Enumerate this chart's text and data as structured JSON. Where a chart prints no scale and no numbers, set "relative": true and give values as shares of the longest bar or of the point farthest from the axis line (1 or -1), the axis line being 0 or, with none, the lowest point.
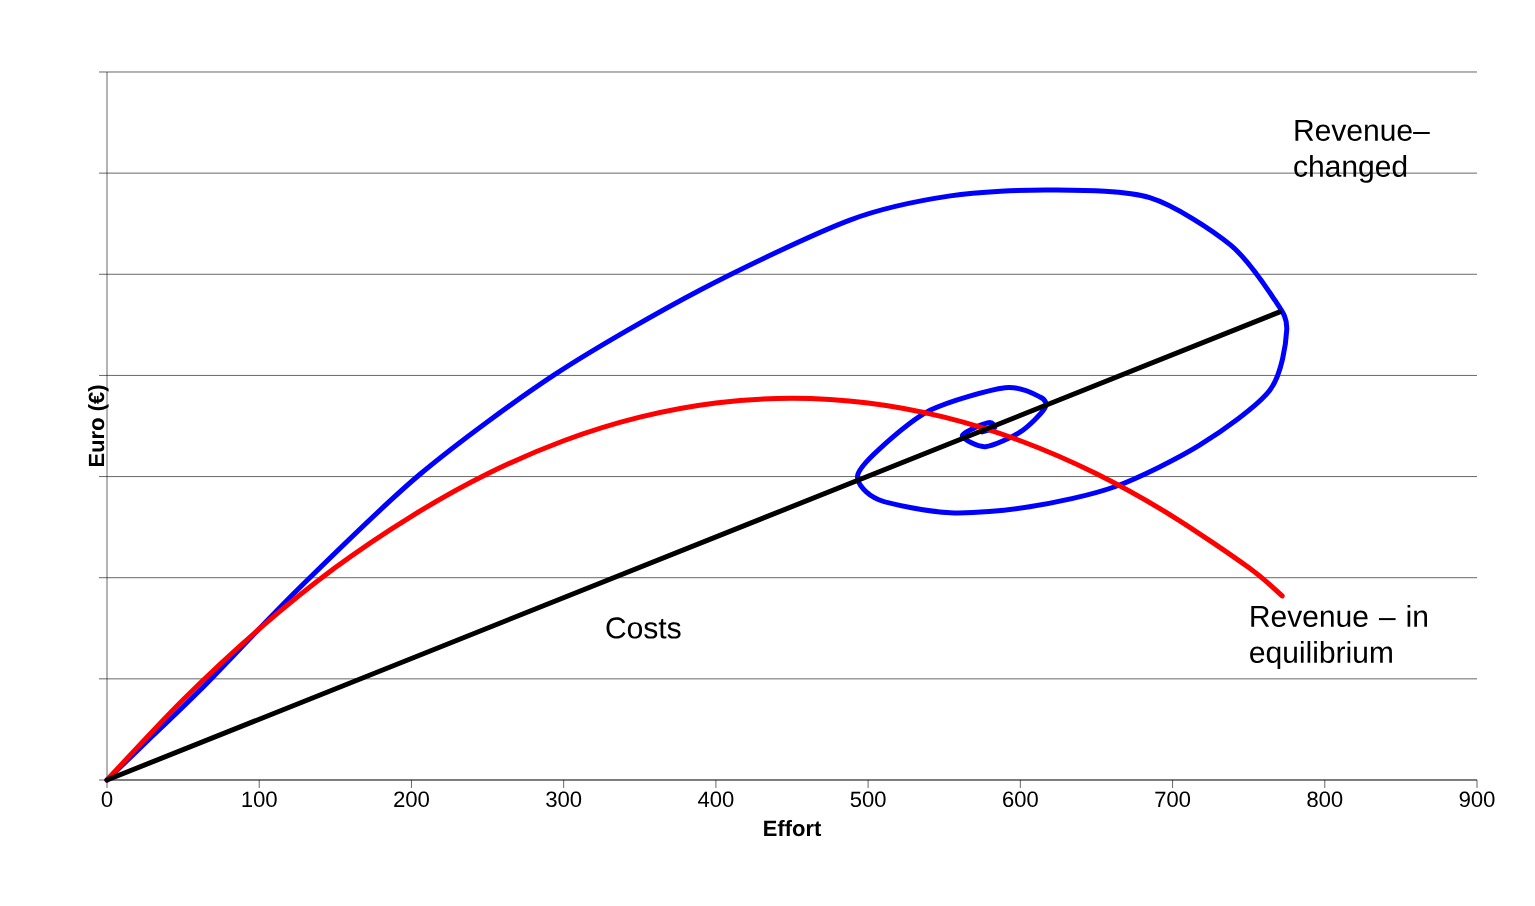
{
  "chart_data": {
    "type": "line",
    "relative": true,
    "xlabel": "Effort",
    "ylabel": "Euro (€)",
    "xlim": [
      0,
      900
    ],
    "xticks": [
      0,
      100,
      200,
      300,
      400,
      500,
      600,
      700,
      800,
      900
    ],
    "tick_labels": "x",
    "grid": "y",
    "legend": false,
    "marker": "none",
    "line_style": "solid",
    "series": [
      {
        "name": "Revenue– changed",
        "color": "#0000ff",
        "x": [
          0,
          30,
          61,
          127,
          206,
          294,
          390,
          488,
          554,
          620,
          685,
          738,
          767,
          775,
          764,
          718,
          662,
          606,
          554,
          507,
          493,
          507,
          541,
          590,
          613,
          616,
          600,
          577,
          562,
          570,
          580,
          583,
          575
        ],
        "values": [
          0,
          0.075,
          0.152,
          0.327,
          0.519,
          0.687,
          0.831,
          0.949,
          0.99,
          1.0,
          0.987,
          0.907,
          0.814,
          0.763,
          0.661,
          0.568,
          0.497,
          0.463,
          0.453,
          0.475,
          0.514,
          0.56,
          0.627,
          0.665,
          0.649,
          0.63,
          0.59,
          0.565,
          0.582,
          0.597,
          0.606,
          0.597,
          0.59
        ]
      },
      {
        "name": "Revenue – in equilibrium",
        "color": "#ff0000",
        "x": [
          0,
          50,
          100,
          150,
          200,
          250,
          300,
          350,
          400,
          450,
          500,
          550,
          600,
          650,
          700,
          750,
          772
        ],
        "values": [
          0,
          0.136,
          0.256,
          0.36,
          0.447,
          0.519,
          0.575,
          0.615,
          0.639,
          0.647,
          0.639,
          0.615,
          0.575,
          0.519,
          0.447,
          0.36,
          0.312
        ]
      },
      {
        "name": "Costs",
        "color": "#000000",
        "x": [
          0,
          770
        ],
        "values": [
          0,
          0.793
        ]
      }
    ]
  }
}
